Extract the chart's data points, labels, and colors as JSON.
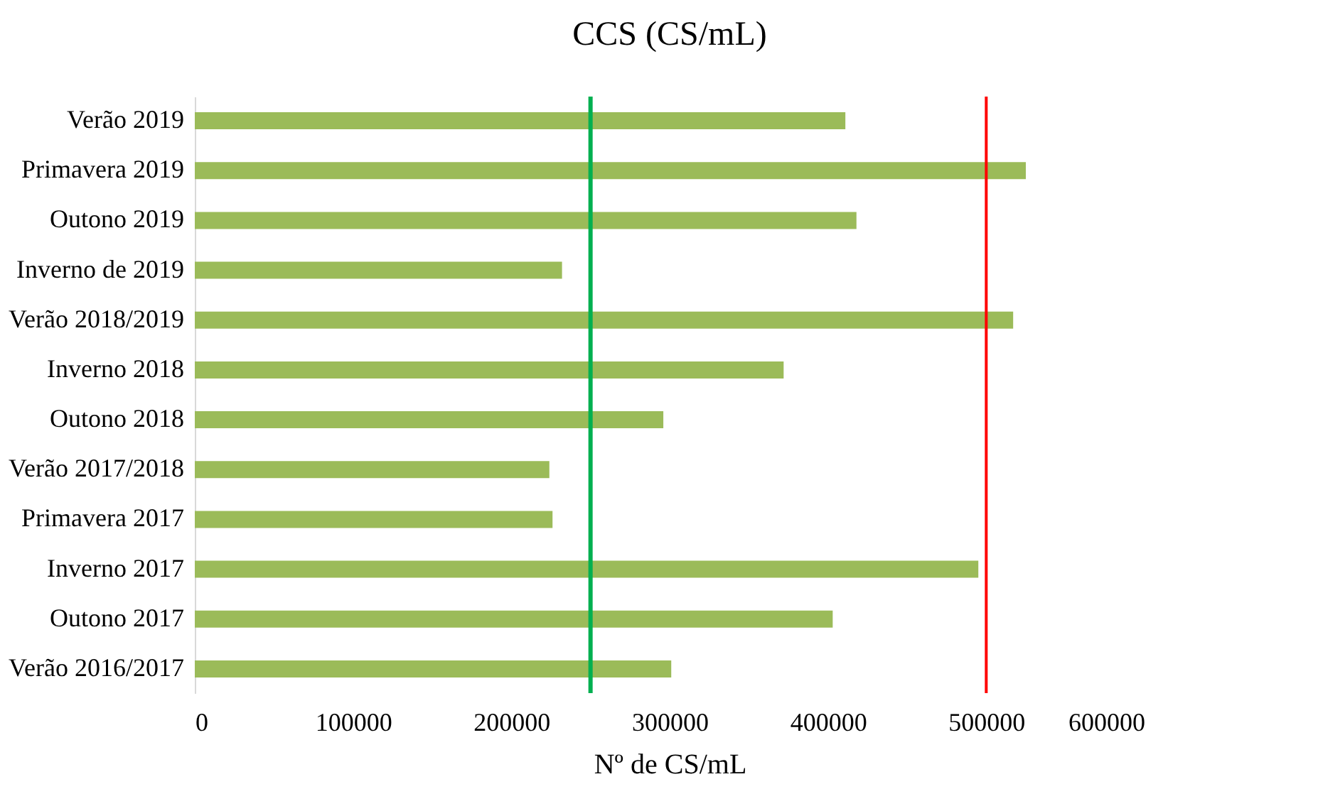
{
  "chart_data": {
    "type": "bar",
    "orientation": "horizontal",
    "title": "CCS (CS/mL)",
    "xlabel": "Nº de CS/mL",
    "categories": [
      "Verão 2019",
      "Primavera 2019",
      "Outono 2019",
      "Inverno de 2019",
      "Verão 2018/2019",
      "Inverno 2018",
      "Outono 2018",
      "Verão 2017/2018",
      "Primavera 2017",
      "Inverno 2017",
      "Outono 2017",
      "Verão 2016/2017"
    ],
    "values": [
      411000,
      525000,
      418000,
      232000,
      517000,
      372000,
      296000,
      224000,
      226000,
      495000,
      403000,
      301000
    ],
    "color": "#9bbb59",
    "xlim": [
      0,
      600000
    ],
    "xticks": [
      0,
      100000,
      200000,
      300000,
      400000,
      500000,
      600000
    ],
    "grid": false,
    "ref_lines": [
      {
        "axis": "x",
        "value": 250000,
        "color": "#00b050"
      },
      {
        "axis": "x",
        "value": 500000,
        "color": "#ff0000"
      }
    ]
  }
}
